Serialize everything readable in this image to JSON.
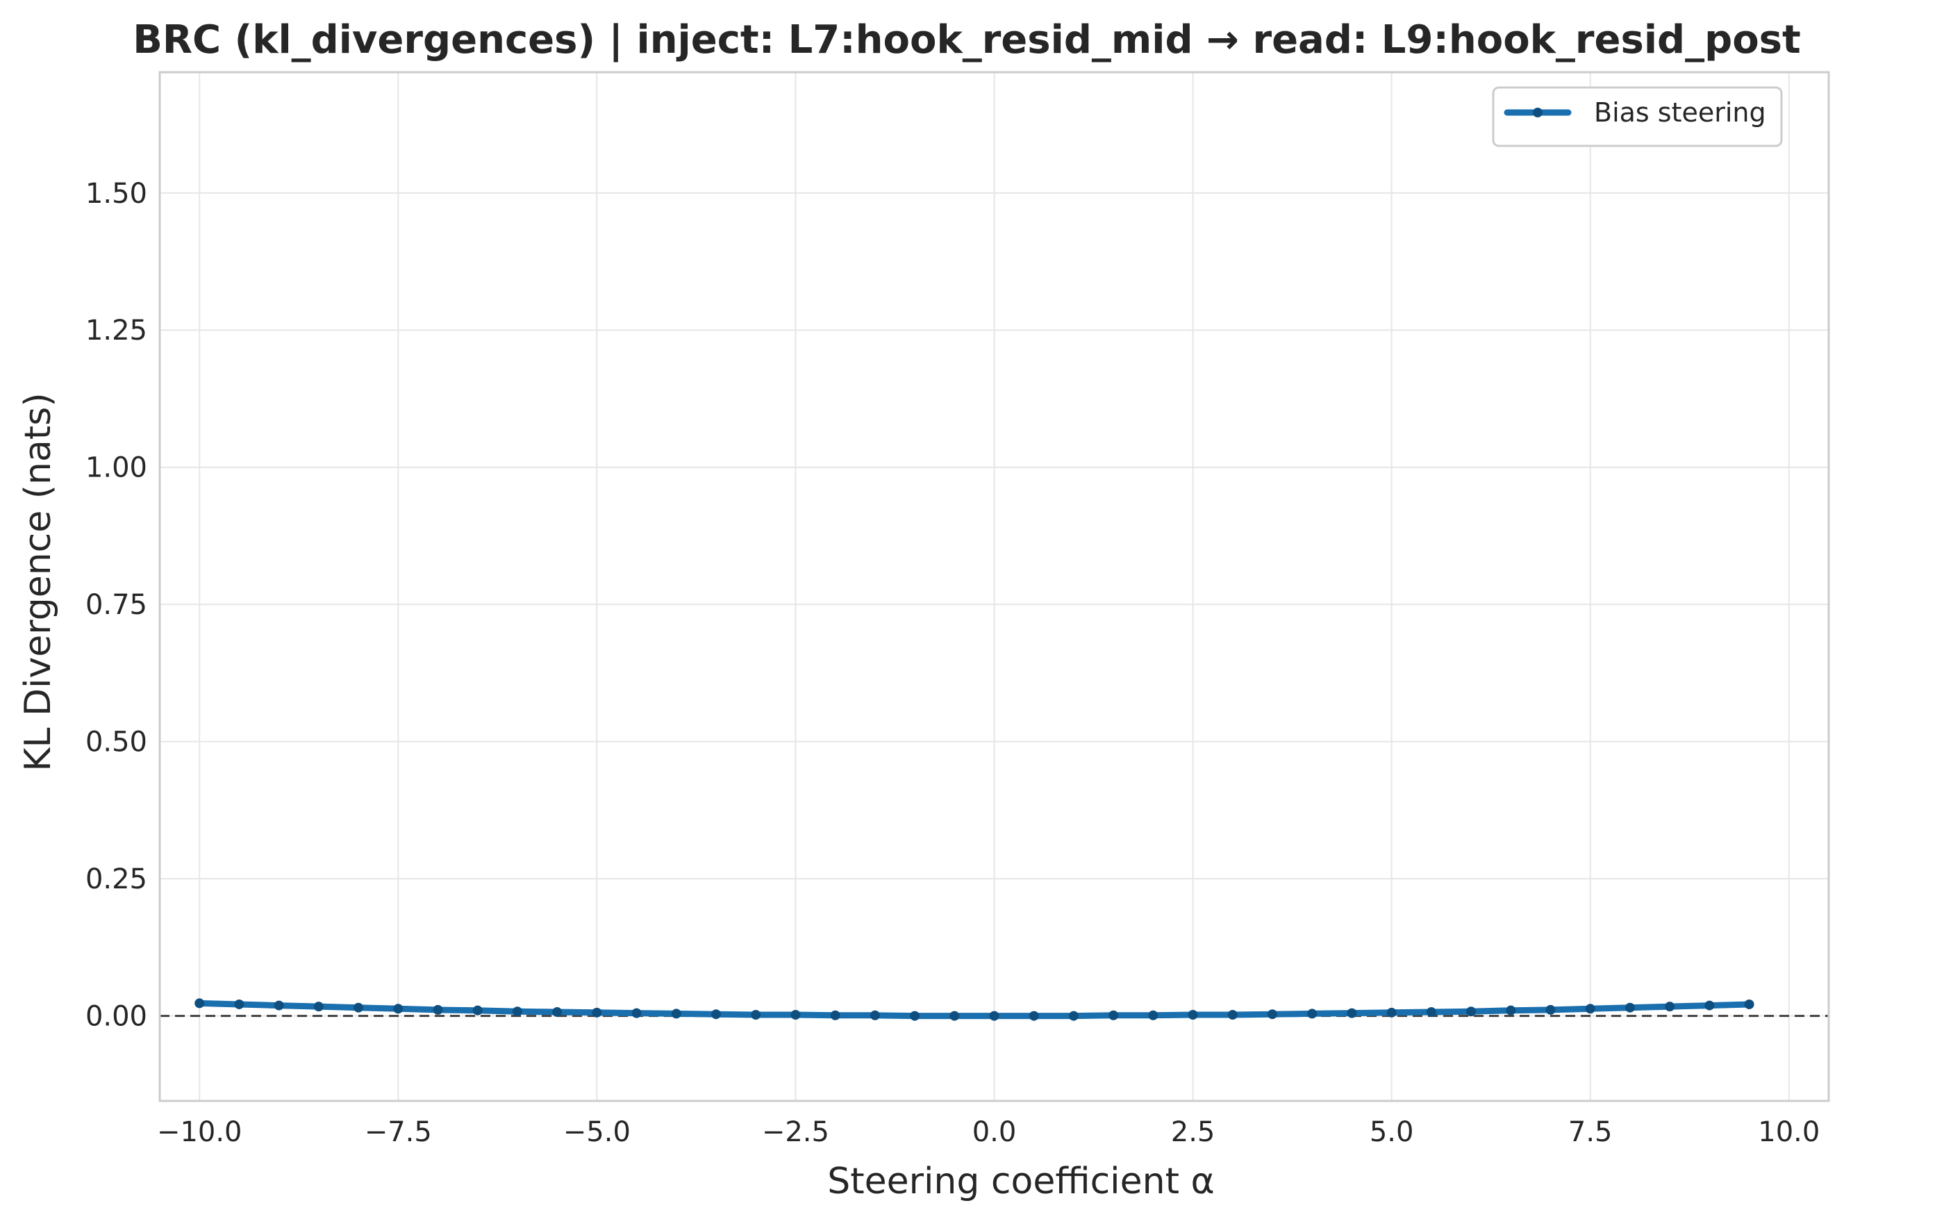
{
  "chart_data": {
    "type": "line",
    "title": "BRC (kl_divergences) | inject: L7:hook_resid_mid → read: L9:hook_resid_post",
    "xlabel": "Steering coefficient α",
    "ylabel": "KL Divergence (nats)",
    "xlim": [
      -10.5,
      10.5
    ],
    "ylim": [
      -0.155,
      1.72
    ],
    "xticks": [
      -10.0,
      -7.5,
      -5.0,
      -2.5,
      0.0,
      2.5,
      5.0,
      7.5,
      10.0
    ],
    "xtick_labels": [
      "−10.0",
      "−7.5",
      "−5.0",
      "−2.5",
      "0.0",
      "2.5",
      "5.0",
      "7.5",
      "10.0"
    ],
    "yticks": [
      0.0,
      0.25,
      0.5,
      0.75,
      1.0,
      1.25,
      1.5
    ],
    "ytick_labels": [
      "0.00",
      "0.25",
      "0.50",
      "0.75",
      "1.00",
      "1.25",
      "1.50"
    ],
    "grid": true,
    "legend_position": "top-right",
    "reference_line": {
      "y": 0,
      "style": "dashed",
      "color": "#404040"
    },
    "series": [
      {
        "name": "Bias steering",
        "color": "#1a6faf",
        "marker_color": "#0f4f80",
        "x": [
          -10.0,
          -9.5,
          -9.0,
          -8.5,
          -8.0,
          -7.5,
          -7.0,
          -6.5,
          -6.0,
          -5.5,
          -5.0,
          -4.5,
          -4.0,
          -3.5,
          -3.0,
          -2.5,
          -2.0,
          -1.5,
          -1.0,
          -0.5,
          0.0,
          0.5,
          1.0,
          1.5,
          2.0,
          2.5,
          3.0,
          3.5,
          4.0,
          4.5,
          5.0,
          5.5,
          6.0,
          6.5,
          7.0,
          7.5,
          8.0,
          8.5,
          9.0,
          9.5
        ],
        "y": [
          0.023,
          0.021,
          0.019,
          0.017,
          0.015,
          0.013,
          0.011,
          0.01,
          0.008,
          0.007,
          0.006,
          0.005,
          0.004,
          0.003,
          0.002,
          0.002,
          0.001,
          0.001,
          0.0,
          0.0,
          0.0,
          0.0,
          0.0,
          0.001,
          0.001,
          0.002,
          0.002,
          0.003,
          0.004,
          0.005,
          0.006,
          0.007,
          0.008,
          0.01,
          0.011,
          0.013,
          0.015,
          0.017,
          0.019,
          0.021
        ]
      }
    ]
  }
}
